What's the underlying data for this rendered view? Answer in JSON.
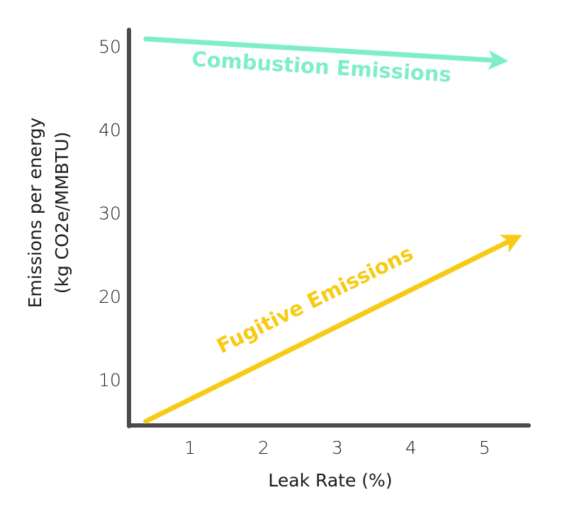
{
  "chart_data": {
    "type": "line",
    "xlabel": "Leak Rate (%)",
    "ylabel_lines": [
      "Emissions per energy",
      "(kg CO2e/MMBTU)"
    ],
    "x_ticks": [
      1,
      2,
      3,
      4,
      5
    ],
    "y_ticks": [
      10,
      20,
      30,
      40,
      50
    ],
    "xlim": [
      0.2,
      5.6
    ],
    "ylim": [
      4.5,
      52
    ],
    "grid": false,
    "legend": "none (series labelled directly on the lines)",
    "series": [
      {
        "name": "Combustion Emissions",
        "color": "#7eeec5",
        "x": [
          0.4,
          5.2
        ],
        "y": [
          50.9,
          48.3
        ],
        "marker": "arrow"
      },
      {
        "name": "Fugitive Emissions",
        "color": "#f7cb15",
        "x": [
          0.4,
          5.4
        ],
        "y": [
          5.0,
          26.9
        ],
        "marker": "arrow"
      }
    ]
  }
}
